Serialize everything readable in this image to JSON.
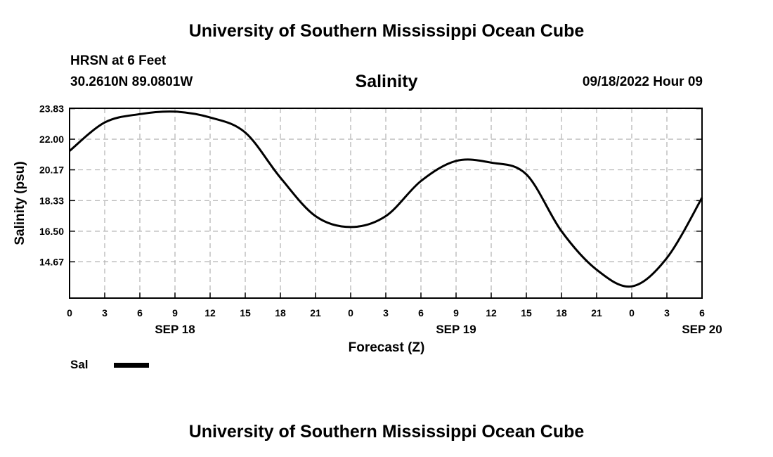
{
  "header": {
    "title": "University of Southern Mississippi Ocean Cube",
    "station": "HRSN at 6 Feet",
    "coords": "30.2610N  89.0801W",
    "variable": "Salinity",
    "issued": "09/18/2022 Hour 09"
  },
  "footer": {
    "title": "University of Southern Mississippi Ocean Cube"
  },
  "chart_data": {
    "type": "line",
    "xlabel": "Forecast (Z)",
    "ylabel": "Salinity (psu)",
    "ylim": [
      12.5,
      23.85
    ],
    "yticks": [
      "23.83",
      "22.00",
      "20.17",
      "18.33",
      "16.50",
      "14.67"
    ],
    "xticks": [
      "0",
      "3",
      "6",
      "9",
      "12",
      "15",
      "18",
      "21",
      "0",
      "3",
      "6",
      "9",
      "12",
      "15",
      "18",
      "21",
      "0",
      "3",
      "6"
    ],
    "day_labels": [
      {
        "hour": 9,
        "label": "SEP 18"
      },
      {
        "hour": 33,
        "label": "SEP 19"
      },
      {
        "hour": 54,
        "label": "SEP 20"
      }
    ],
    "xlim": [
      0,
      54
    ],
    "grid": true,
    "series": [
      {
        "name": "Sal",
        "color": "#000000",
        "x": [
          0,
          3,
          6,
          9,
          12,
          15,
          18,
          21,
          24,
          27,
          30,
          33,
          36,
          39,
          42,
          45,
          48,
          51,
          54
        ],
        "values": [
          21.3,
          23.0,
          23.5,
          23.65,
          23.3,
          22.4,
          19.7,
          17.4,
          16.75,
          17.4,
          19.5,
          20.7,
          20.6,
          19.9,
          16.5,
          14.2,
          13.2,
          14.9,
          18.5
        ]
      }
    ]
  },
  "legend": {
    "label": "Sal"
  }
}
